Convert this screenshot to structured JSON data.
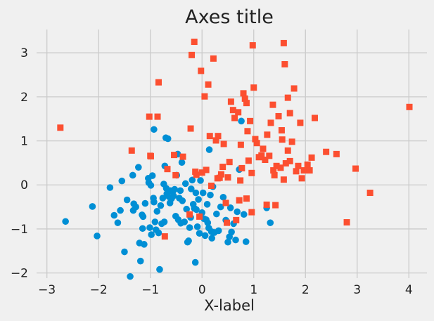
{
  "chart_data": {
    "type": "scatter",
    "title": "Axes title",
    "xlabel": "X-label",
    "ylabel": "",
    "xlim": [
      -3.2,
      4.35
    ],
    "ylim": [
      -2.15,
      3.45
    ],
    "xticks": [
      -3,
      -2,
      -1,
      0,
      1,
      2,
      3,
      4
    ],
    "yticks": [
      -2,
      -1,
      0,
      1,
      2,
      3
    ],
    "xtick_labels": [
      "−3",
      "−2",
      "−1",
      "0",
      "1",
      "2",
      "3",
      "4"
    ],
    "ytick_labels": [
      "−2",
      "−1",
      "0",
      "1",
      "2",
      "3"
    ],
    "grid": true,
    "legend": "none",
    "series": [
      {
        "marker": "circle",
        "color": "#008fd5",
        "points": [
          [
            -2.64,
            -0.83
          ],
          [
            -2.12,
            -0.49
          ],
          [
            -2.03,
            -1.16
          ],
          [
            -1.78,
            -0.06
          ],
          [
            -1.7,
            -0.69
          ],
          [
            -1.63,
            -0.86
          ],
          [
            -1.58,
            -0.58
          ],
          [
            -1.55,
            0.09
          ],
          [
            -1.5,
            -1.52
          ],
          [
            -1.45,
            -0.34
          ],
          [
            -1.39,
            -2.08
          ],
          [
            -1.34,
            0.22
          ],
          [
            -1.33,
            -0.58
          ],
          [
            -1.32,
            -0.43
          ],
          [
            -1.28,
            -0.5
          ],
          [
            -1.23,
            0.4
          ],
          [
            -1.21,
            -1.32
          ],
          [
            -1.19,
            -1.73
          ],
          [
            -1.16,
            -0.68
          ],
          [
            -1.15,
            -0.99
          ],
          [
            -1.14,
            -0.72
          ],
          [
            -1.12,
            -1.35
          ],
          [
            -1.1,
            -0.42
          ],
          [
            -1.04,
            0.15
          ],
          [
            -1.03,
            0.05
          ],
          [
            -1.01,
            -0.97
          ],
          [
            -0.99,
            -0.01
          ],
          [
            -0.98,
            -1.13
          ],
          [
            -0.96,
            0.21
          ],
          [
            -0.94,
            -0.3
          ],
          [
            -0.93,
            -0.39
          ],
          [
            -0.93,
            1.26
          ],
          [
            -0.91,
            -0.84
          ],
          [
            -0.89,
            -1.02
          ],
          [
            -0.87,
            -0.6
          ],
          [
            -0.84,
            -1.09
          ],
          [
            -0.82,
            -1.92
          ],
          [
            -0.8,
            -0.47
          ],
          [
            -0.78,
            -0.88
          ],
          [
            -0.76,
            -0.3
          ],
          [
            -0.74,
            0.02
          ],
          [
            -0.73,
            -0.84
          ],
          [
            -0.72,
            0.43
          ],
          [
            -0.7,
            1.07
          ],
          [
            -0.69,
            -0.08
          ],
          [
            -0.68,
            -0.2
          ],
          [
            -0.66,
            1.05
          ],
          [
            -0.64,
            -0.27
          ],
          [
            -0.62,
            -0.41
          ],
          [
            -0.61,
            -0.13
          ],
          [
            -0.59,
            -0.31
          ],
          [
            -0.56,
            -0.14
          ],
          [
            -0.55,
            -0.25
          ],
          [
            -0.53,
            -0.1
          ],
          [
            -0.51,
            -0.71
          ],
          [
            -0.49,
            0.22
          ],
          [
            -0.47,
            0.7
          ],
          [
            -0.46,
            -0.79
          ],
          [
            -0.44,
            -0.3
          ],
          [
            -0.42,
            -0.13
          ],
          [
            -0.41,
            -0.87
          ],
          [
            -0.39,
            0.51
          ],
          [
            -0.38,
            -0.36
          ],
          [
            -0.34,
            -0.84
          ],
          [
            -0.32,
            0.03
          ],
          [
            -0.3,
            -0.55
          ],
          [
            -0.28,
            -1.3
          ],
          [
            -0.26,
            -1.27
          ],
          [
            -0.24,
            -0.97
          ],
          [
            -0.22,
            -0.74
          ],
          [
            -0.21,
            -0.09
          ],
          [
            -0.19,
            0.11
          ],
          [
            -0.17,
            -0.44
          ],
          [
            -0.15,
            -0.53
          ],
          [
            -0.13,
            -1.76
          ],
          [
            -0.12,
            -0.18
          ],
          [
            -0.11,
            -0.56
          ],
          [
            -0.09,
            -0.95
          ],
          [
            -0.07,
            -0.33
          ],
          [
            -0.05,
            -1.1
          ],
          [
            -0.03,
            0.1
          ],
          [
            0.0,
            -0.63
          ],
          [
            0.02,
            -0.18
          ],
          [
            0.04,
            -0.77
          ],
          [
            0.06,
            -1.15
          ],
          [
            0.08,
            -0.79
          ],
          [
            0.1,
            -0.44
          ],
          [
            0.11,
            -0.86
          ],
          [
            0.13,
            -0.98
          ],
          [
            0.14,
            0.8
          ],
          [
            0.16,
            -0.23
          ],
          [
            0.18,
            -1.06
          ],
          [
            0.19,
            -1.21
          ],
          [
            0.21,
            -0.04
          ],
          [
            0.24,
            -1.08
          ],
          [
            0.28,
            -0.66
          ],
          [
            0.32,
            -1.04
          ],
          [
            0.36,
            -0.5
          ],
          [
            0.41,
            -0.28
          ],
          [
            0.46,
            -0.8
          ],
          [
            0.5,
            -1.3
          ],
          [
            0.53,
            -1.18
          ],
          [
            0.55,
            -0.52
          ],
          [
            0.57,
            -1.07
          ],
          [
            0.61,
            -0.88
          ],
          [
            0.65,
            -1.25
          ],
          [
            0.68,
            -0.61
          ],
          [
            0.72,
            0.35
          ],
          [
            0.76,
            1.45
          ],
          [
            0.81,
            -0.67
          ],
          [
            0.85,
            -1.29
          ],
          [
            1.25,
            -0.52
          ],
          [
            1.32,
            -0.86
          ]
        ]
      },
      {
        "marker": "square",
        "color": "#fc4f30",
        "points": [
          [
            -2.74,
            1.3
          ],
          [
            -1.36,
            0.78
          ],
          [
            -1.02,
            1.55
          ],
          [
            -1.0,
            0.66
          ],
          [
            -0.99,
            0.65
          ],
          [
            -0.86,
            1.55
          ],
          [
            -0.84,
            2.33
          ],
          [
            -0.72,
            -1.17
          ],
          [
            -0.67,
            0.36
          ],
          [
            -0.54,
            0.68
          ],
          [
            -0.51,
            0.22
          ],
          [
            -0.37,
            0.64
          ],
          [
            -0.24,
            -0.67
          ],
          [
            -0.22,
            1.28
          ],
          [
            -0.2,
            2.95
          ],
          [
            -0.15,
            3.25
          ],
          [
            -0.13,
            0.3
          ],
          [
            -0.11,
            0.23
          ],
          [
            -0.05,
            -0.72
          ],
          [
            -0.02,
            2.59
          ],
          [
            0.0,
            0.28
          ],
          [
            0.05,
            2.01
          ],
          [
            0.08,
            0.34
          ],
          [
            0.12,
            2.28
          ],
          [
            0.15,
            1.11
          ],
          [
            0.18,
            -0.02
          ],
          [
            0.22,
            2.87
          ],
          [
            0.27,
            1.01
          ],
          [
            0.3,
            0.15
          ],
          [
            0.31,
            1.11
          ],
          [
            0.34,
            0.16
          ],
          [
            0.37,
            0.24
          ],
          [
            0.4,
            0.41
          ],
          [
            0.42,
            0.93
          ],
          [
            0.46,
            -0.41
          ],
          [
            0.48,
            -0.86
          ],
          [
            0.5,
            0.17
          ],
          [
            0.53,
            0.52
          ],
          [
            0.56,
            1.89
          ],
          [
            0.6,
            1.7
          ],
          [
            0.63,
            1.52
          ],
          [
            0.66,
            -0.8
          ],
          [
            0.7,
            1.65
          ],
          [
            0.72,
            -0.35
          ],
          [
            0.75,
            0.91
          ],
          [
            0.77,
            0.38
          ],
          [
            0.8,
            2.08
          ],
          [
            0.83,
            1.96
          ],
          [
            0.86,
            1.86
          ],
          [
            0.88,
            1.22
          ],
          [
            0.9,
            0.55
          ],
          [
            0.93,
            1.45
          ],
          [
            0.96,
            0.27
          ],
          [
            0.98,
            3.17
          ],
          [
            1.0,
            2.21
          ],
          [
            1.03,
            1.04
          ],
          [
            1.06,
            0.95
          ],
          [
            1.1,
            0.63
          ],
          [
            1.15,
            0.67
          ],
          [
            1.18,
            0.82
          ],
          [
            1.22,
            0.57
          ],
          [
            1.26,
            1.14
          ],
          [
            1.3,
            0.66
          ],
          [
            1.33,
            1.41
          ],
          [
            1.37,
            1.82
          ],
          [
            1.4,
            0.22
          ],
          [
            1.44,
            0.43
          ],
          [
            1.48,
            1.56
          ],
          [
            1.52,
            0.39
          ],
          [
            1.55,
            1.03
          ],
          [
            1.58,
            0.12
          ],
          [
            1.62,
            0.49
          ],
          [
            1.66,
            0.78
          ],
          [
            1.7,
            0.54
          ],
          [
            1.74,
            0.98
          ],
          [
            1.78,
            2.19
          ],
          [
            1.82,
            0.31
          ],
          [
            1.86,
            0.43
          ],
          [
            1.9,
            1.41
          ],
          [
            1.93,
            0.15
          ],
          [
            1.97,
            0.33
          ],
          [
            2.04,
            0.46
          ],
          [
            2.08,
            0.33
          ],
          [
            2.12,
            0.62
          ],
          [
            2.18,
            1.52
          ],
          [
            2.4,
            0.75
          ],
          [
            2.6,
            0.7
          ],
          [
            2.8,
            -0.85
          ],
          [
            2.97,
            0.37
          ],
          [
            3.25,
            -0.18
          ],
          [
            4.01,
            1.77
          ],
          [
            1.58,
            3.22
          ],
          [
            1.6,
            2.74
          ],
          [
            1.66,
            1.98
          ],
          [
            1.7,
            1.63
          ],
          [
            1.25,
            -0.45
          ],
          [
            1.42,
            -0.46
          ],
          [
            1.38,
            0.33
          ],
          [
            1.54,
            1.24
          ],
          [
            0.74,
            0.1
          ],
          [
            0.86,
            -0.31
          ],
          [
            0.96,
            -0.62
          ]
        ]
      }
    ]
  }
}
